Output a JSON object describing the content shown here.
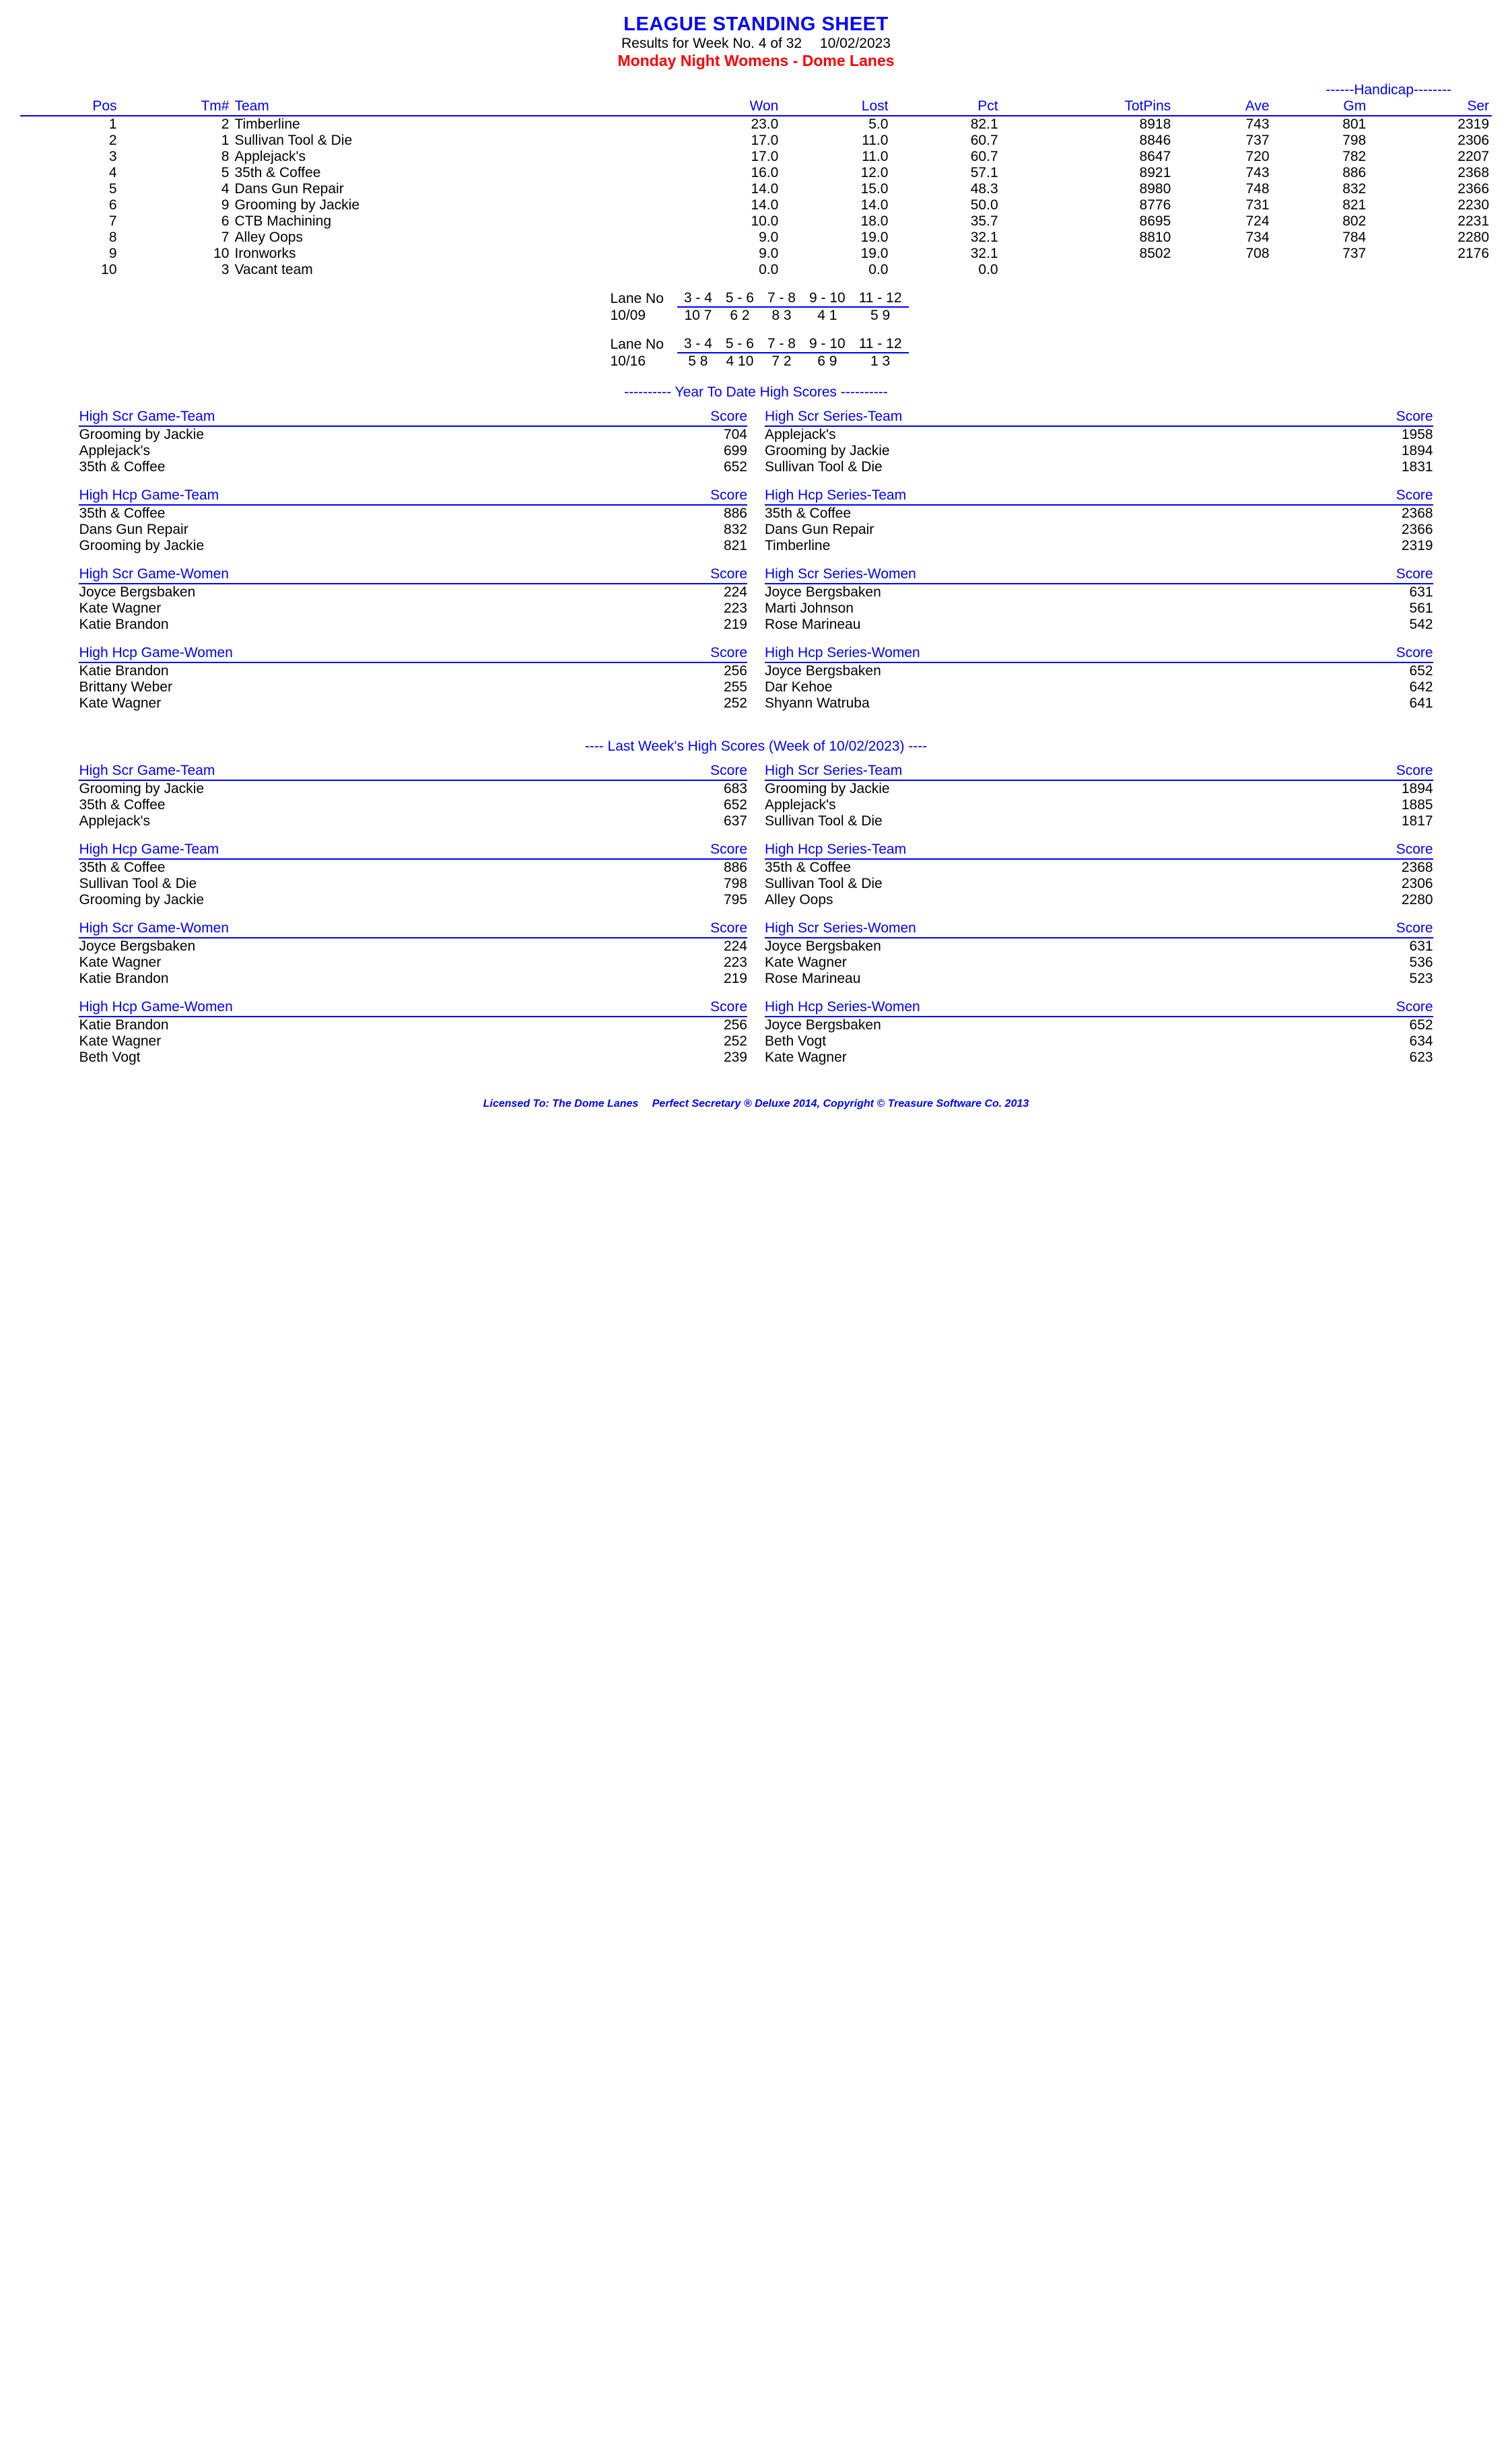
{
  "header": {
    "title": "LEAGUE STANDING SHEET",
    "results_line": "Results for Week No. 4 of 32  10/02/2023",
    "league_name": "Monday Night Womens - Dome Lanes"
  },
  "handicap_label": "------Handicap--------",
  "standings": {
    "columns": [
      "Pos",
      "Tm#",
      "Team",
      "Won",
      "Lost",
      "Pct",
      "TotPins",
      "Ave",
      "Gm",
      "Ser"
    ],
    "rows": [
      [
        "1",
        "2",
        "Timberline",
        "23.0",
        "5.0",
        "82.1",
        "8918",
        "743",
        "801",
        "2319"
      ],
      [
        "2",
        "1",
        "Sullivan Tool & Die",
        "17.0",
        "11.0",
        "60.7",
        "8846",
        "737",
        "798",
        "2306"
      ],
      [
        "3",
        "8",
        "Applejack's",
        "17.0",
        "11.0",
        "60.7",
        "8647",
        "720",
        "782",
        "2207"
      ],
      [
        "4",
        "5",
        "35th & Coffee",
        "16.0",
        "12.0",
        "57.1",
        "8921",
        "743",
        "886",
        "2368"
      ],
      [
        "5",
        "4",
        "Dans Gun Repair",
        "14.0",
        "15.0",
        "48.3",
        "8980",
        "748",
        "832",
        "2366"
      ],
      [
        "6",
        "9",
        "Grooming by Jackie",
        "14.0",
        "14.0",
        "50.0",
        "8776",
        "731",
        "821",
        "2230"
      ],
      [
        "7",
        "6",
        "CTB Machining",
        "10.0",
        "18.0",
        "35.7",
        "8695",
        "724",
        "802",
        "2231"
      ],
      [
        "8",
        "7",
        "Alley Oops",
        "9.0",
        "19.0",
        "32.1",
        "8810",
        "734",
        "784",
        "2280"
      ],
      [
        "9",
        "10",
        "Ironworks",
        "9.0",
        "19.0",
        "32.1",
        "8502",
        "708",
        "737",
        "2176"
      ],
      [
        "10",
        "3",
        "Vacant team",
        "0.0",
        "0.0",
        "0.0",
        "",
        "",
        "",
        ""
      ]
    ]
  },
  "lane_schedule": [
    {
      "label": "Lane No",
      "lanes": [
        "3 -  4",
        "5 -  6",
        "7 -  8",
        "9 - 10",
        "11 - 12"
      ],
      "date": "10/09",
      "assignments": [
        "10   7",
        "6   2",
        "8   3",
        "4   1",
        "5   9"
      ]
    },
    {
      "label": "Lane No",
      "lanes": [
        "3 -  4",
        "5 -  6",
        "7 -  8",
        "9 - 10",
        "11 - 12"
      ],
      "date": "10/16",
      "assignments": [
        "5   8",
        "4  10",
        "7   2",
        "6   9",
        "1   3"
      ]
    }
  ],
  "ytd_title": "----------  Year To Date High Scores  ----------",
  "ytd": {
    "left": [
      {
        "title": "High Scr Game-Team",
        "rows": [
          [
            "Grooming by Jackie",
            "704"
          ],
          [
            "Applejack's",
            "699"
          ],
          [
            "35th & Coffee",
            "652"
          ]
        ]
      },
      {
        "title": "High Hcp Game-Team",
        "rows": [
          [
            "35th & Coffee",
            "886"
          ],
          [
            "Dans Gun Repair",
            "832"
          ],
          [
            "Grooming by Jackie",
            "821"
          ]
        ]
      },
      {
        "title": "High Scr Game-Women",
        "rows": [
          [
            "Joyce Bergsbaken",
            "224"
          ],
          [
            "Kate Wagner",
            "223"
          ],
          [
            "Katie Brandon",
            "219"
          ]
        ]
      },
      {
        "title": "High Hcp Game-Women",
        "rows": [
          [
            "Katie Brandon",
            "256"
          ],
          [
            "Brittany Weber",
            "255"
          ],
          [
            "Kate Wagner",
            "252"
          ]
        ]
      }
    ],
    "right": [
      {
        "title": "High Scr Series-Team",
        "rows": [
          [
            "Applejack's",
            "1958"
          ],
          [
            "Grooming by Jackie",
            "1894"
          ],
          [
            "Sullivan Tool & Die",
            "1831"
          ]
        ]
      },
      {
        "title": "High Hcp Series-Team",
        "rows": [
          [
            "35th & Coffee",
            "2368"
          ],
          [
            "Dans Gun Repair",
            "2366"
          ],
          [
            "Timberline",
            "2319"
          ]
        ]
      },
      {
        "title": "High Scr Series-Women",
        "rows": [
          [
            "Joyce Bergsbaken",
            "631"
          ],
          [
            "Marti Johnson",
            "561"
          ],
          [
            "Rose Marineau",
            "542"
          ]
        ]
      },
      {
        "title": "High Hcp Series-Women",
        "rows": [
          [
            "Joyce Bergsbaken",
            "652"
          ],
          [
            "Dar Kehoe",
            "642"
          ],
          [
            "Shyann Watruba",
            "641"
          ]
        ]
      }
    ]
  },
  "lw_title": "----  Last Week's High Scores   (Week of 10/02/2023)  ----",
  "lw": {
    "left": [
      {
        "title": "High Scr Game-Team",
        "rows": [
          [
            "Grooming by Jackie",
            "683"
          ],
          [
            "35th & Coffee",
            "652"
          ],
          [
            "Applejack's",
            "637"
          ]
        ]
      },
      {
        "title": "High Hcp Game-Team",
        "rows": [
          [
            "35th & Coffee",
            "886"
          ],
          [
            "Sullivan Tool & Die",
            "798"
          ],
          [
            "Grooming by Jackie",
            "795"
          ]
        ]
      },
      {
        "title": "High Scr Game-Women",
        "rows": [
          [
            "Joyce Bergsbaken",
            "224"
          ],
          [
            "Kate Wagner",
            "223"
          ],
          [
            "Katie Brandon",
            "219"
          ]
        ]
      },
      {
        "title": "High Hcp Game-Women",
        "rows": [
          [
            "Katie Brandon",
            "256"
          ],
          [
            "Kate Wagner",
            "252"
          ],
          [
            "Beth Vogt",
            "239"
          ]
        ]
      }
    ],
    "right": [
      {
        "title": "High Scr Series-Team",
        "rows": [
          [
            "Grooming by Jackie",
            "1894"
          ],
          [
            "Applejack's",
            "1885"
          ],
          [
            "Sullivan Tool & Die",
            "1817"
          ]
        ]
      },
      {
        "title": "High Hcp Series-Team",
        "rows": [
          [
            "35th & Coffee",
            "2368"
          ],
          [
            "Sullivan Tool & Die",
            "2306"
          ],
          [
            "Alley Oops",
            "2280"
          ]
        ]
      },
      {
        "title": "High Scr Series-Women",
        "rows": [
          [
            "Joyce Bergsbaken",
            "631"
          ],
          [
            "Kate Wagner",
            "536"
          ],
          [
            "Rose Marineau",
            "523"
          ]
        ]
      },
      {
        "title": "High Hcp Series-Women",
        "rows": [
          [
            "Joyce Bergsbaken",
            "652"
          ],
          [
            "Beth Vogt",
            "634"
          ],
          [
            "Kate Wagner",
            "623"
          ]
        ]
      }
    ]
  },
  "score_label": "Score",
  "footer": "Licensed To: The Dome Lanes  Perfect Secretary ® Deluxe  2014, Copyright © Treasure Software Co. 2013"
}
